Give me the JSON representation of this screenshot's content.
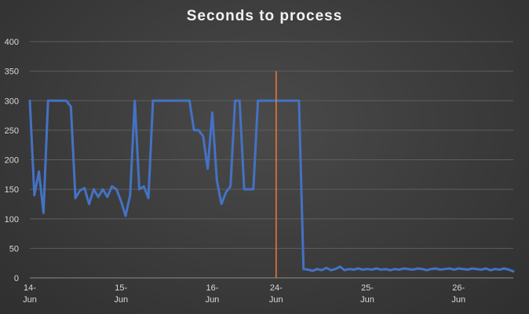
{
  "chart_data": {
    "type": "line",
    "title": "Seconds to process",
    "xlabel": "",
    "ylabel": "",
    "ylim": [
      0,
      400
    ],
    "yticks": [
      0,
      50,
      100,
      150,
      200,
      250,
      300,
      350,
      400
    ],
    "grid": true,
    "legend": "none",
    "x_tick_labels": [
      {
        "at": 0,
        "line1": "14-",
        "line2": "Jun"
      },
      {
        "at": 20,
        "line1": "15-",
        "line2": "Jun"
      },
      {
        "at": 40,
        "line1": "16-",
        "line2": "Jun"
      },
      {
        "at": 54,
        "line1": "24-",
        "line2": "Jun"
      },
      {
        "at": 74,
        "line1": "25-",
        "line2": "Jun"
      },
      {
        "at": 94,
        "line1": "26-",
        "line2": "Jun"
      }
    ],
    "x_range": [
      0,
      106
    ],
    "series": [
      {
        "color": "#4472c4",
        "values": [
          300,
          140,
          180,
          110,
          300,
          300,
          300,
          300,
          300,
          290,
          135,
          148,
          152,
          125,
          150,
          137,
          150,
          137,
          155,
          150,
          130,
          105,
          140,
          300,
          150,
          155,
          135,
          300,
          300,
          300,
          300,
          300,
          300,
          300,
          300,
          300,
          250,
          250,
          240,
          185,
          280,
          165,
          125,
          145,
          155,
          300,
          300,
          150,
          150,
          150,
          300,
          300,
          300,
          300,
          300,
          300,
          300,
          300,
          300,
          300,
          15,
          14,
          12,
          15,
          13,
          17,
          13,
          15,
          19,
          13,
          15,
          14,
          16,
          14,
          15,
          14,
          16,
          14,
          15,
          13,
          15,
          14,
          16,
          15,
          14,
          16,
          15,
          13,
          15,
          16,
          14,
          15,
          16,
          14,
          16,
          15,
          14,
          16,
          15,
          14,
          16,
          13,
          15,
          14,
          16,
          14,
          11
        ]
      }
    ],
    "marker_line": {
      "x": 54,
      "color": "#ed7d31"
    }
  }
}
